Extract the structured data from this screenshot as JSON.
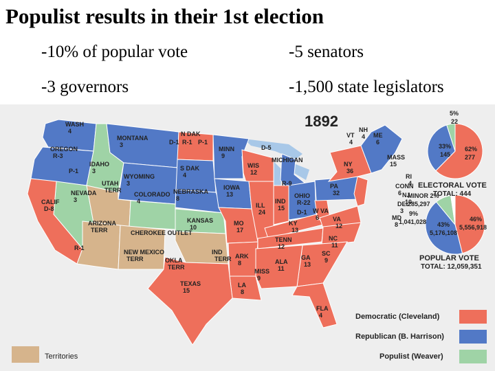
{
  "slide": {
    "title": "Populist results in their 1st election",
    "bullets": [
      "-10% of popular vote",
      "-5 senators",
      "-3 governors",
      "-1,500 state legislators"
    ]
  },
  "colors": {
    "democratic": "#ee6f5b",
    "republican": "#5279c6",
    "populist": "#9fd3a6",
    "territory": "#d6b48c",
    "water": "#a8c8e8",
    "land": "#eeeeee"
  },
  "map": {
    "year": "1892",
    "states": [
      {
        "name": "WASH",
        "votes": "4",
        "party": "republican"
      },
      {
        "name": "MONTANA",
        "votes": "3",
        "party": "republican"
      },
      {
        "name": "OREGON",
        "votes": "R-3",
        "party": "republican"
      },
      {
        "name": "P-1",
        "votes": "",
        "party": "populist"
      },
      {
        "name": "IDAHO",
        "votes": "3",
        "party": "populist"
      },
      {
        "name": "WYOMING",
        "votes": "3",
        "party": "republican"
      },
      {
        "name": "N DAK",
        "votes": "",
        "party": "democratic"
      },
      {
        "name": "D-1",
        "votes": "",
        "party": "democratic"
      },
      {
        "name": "R-1",
        "votes": "",
        "party": "republican"
      },
      {
        "name": "P-1",
        "votes": "",
        "party": "populist"
      },
      {
        "name": "S DAK",
        "votes": "4",
        "party": "republican"
      },
      {
        "name": "MINN",
        "votes": "9",
        "party": "republican"
      },
      {
        "name": "WIS",
        "votes": "12",
        "party": "democratic"
      },
      {
        "name": "MICHIGAN",
        "votes": "",
        "party": "republican"
      },
      {
        "name": "R-9",
        "votes": "",
        "party": "republican"
      },
      {
        "name": "D-5",
        "votes": "",
        "party": "democratic"
      },
      {
        "name": "NEVADA",
        "votes": "3",
        "party": "populist"
      },
      {
        "name": "CALIF",
        "votes": "D-8",
        "party": "democratic"
      },
      {
        "name": "R-1",
        "votes": "",
        "party": "republican"
      },
      {
        "name": "UTAH",
        "votes": "TERR",
        "party": "territory"
      },
      {
        "name": "COLORADO",
        "votes": "4",
        "party": "populist"
      },
      {
        "name": "NEBRASKA",
        "votes": "8",
        "party": "republican"
      },
      {
        "name": "IOWA",
        "votes": "13",
        "party": "republican"
      },
      {
        "name": "ILL",
        "votes": "24",
        "party": "democratic"
      },
      {
        "name": "IND",
        "votes": "15",
        "party": "democratic"
      },
      {
        "name": "OHIO",
        "votes": "R-22",
        "party": "republican"
      },
      {
        "name": "D-1",
        "votes": "",
        "party": "democratic"
      },
      {
        "name": "KANSAS",
        "votes": "10",
        "party": "populist"
      },
      {
        "name": "MO",
        "votes": "17",
        "party": "democratic"
      },
      {
        "name": "KY",
        "votes": "13",
        "party": "democratic"
      },
      {
        "name": "W VA",
        "votes": "6",
        "party": "democratic"
      },
      {
        "name": "VA",
        "votes": "12",
        "party": "democratic"
      },
      {
        "name": "PA",
        "votes": "32",
        "party": "republican"
      },
      {
        "name": "NY",
        "votes": "36",
        "party": "democratic"
      },
      {
        "name": "VT",
        "votes": "4",
        "party": "republican"
      },
      {
        "name": "NH",
        "votes": "4",
        "party": "republican"
      },
      {
        "name": "ME",
        "votes": "6",
        "party": "republican"
      },
      {
        "name": "MASS",
        "votes": "15",
        "party": "republican"
      },
      {
        "name": "RI",
        "votes": "4",
        "party": "republican"
      },
      {
        "name": "CONN",
        "votes": "6",
        "party": "democratic"
      },
      {
        "name": "NJ",
        "votes": "10",
        "party": "democratic"
      },
      {
        "name": "DEL",
        "votes": "3",
        "party": "democratic"
      },
      {
        "name": "MD",
        "votes": "8",
        "party": "democratic"
      },
      {
        "name": "ARIZONA",
        "votes": "TERR",
        "party": "territory"
      },
      {
        "name": "NEW MEXICO",
        "votes": "TERR",
        "party": "territory"
      },
      {
        "name": "OKLA",
        "votes": "TERR",
        "party": "territory"
      },
      {
        "name": "IND",
        "votes": "TERR",
        "party": "territory"
      },
      {
        "name": "ARK",
        "votes": "8",
        "party": "democratic"
      },
      {
        "name": "TENN",
        "votes": "12",
        "party": "democratic"
      },
      {
        "name": "NC",
        "votes": "11",
        "party": "democratic"
      },
      {
        "name": "SC",
        "votes": "9",
        "party": "democratic"
      },
      {
        "name": "GA",
        "votes": "13",
        "party": "democratic"
      },
      {
        "name": "ALA",
        "votes": "11",
        "party": "democratic"
      },
      {
        "name": "MISS",
        "votes": "9",
        "party": "democratic"
      },
      {
        "name": "LA",
        "votes": "8",
        "party": "democratic"
      },
      {
        "name": "TEXAS",
        "votes": "15",
        "party": "democratic"
      },
      {
        "name": "FLA",
        "votes": "4",
        "party": "democratic"
      }
    ],
    "cherokee_label": "CHEROKEE OUTLET",
    "electoral": {
      "title": "ELECTORAL VOTE",
      "total": "TOTAL: 444",
      "labels": [
        {
          "pct": "62%",
          "value": "277"
        },
        {
          "pct": "33%",
          "value": "145"
        },
        {
          "pct": "5%",
          "value": "22"
        }
      ],
      "slices": [
        {
          "party": "democratic",
          "value": 277
        },
        {
          "party": "republican",
          "value": 145
        },
        {
          "party": "populist",
          "value": 22
        }
      ]
    },
    "popular": {
      "title": "POPULAR VOTE",
      "total": "TOTAL: 12,059,351",
      "labels": [
        {
          "pct": "46%",
          "value": "5,556,918"
        },
        {
          "pct": "43%",
          "value": "5,176,108"
        },
        {
          "pct": "9%",
          "value": "1,041,028"
        },
        {
          "pct": "MINOR 2%",
          "value": "285,297"
        }
      ],
      "slices": [
        {
          "party": "democratic",
          "value": 5556918
        },
        {
          "party": "republican",
          "value": 5176108
        },
        {
          "party": "populist",
          "value": 1041028
        },
        {
          "party": "minor",
          "value": 285297
        }
      ]
    },
    "legend": [
      {
        "label": "Democratic (Cleveland)",
        "party": "democratic"
      },
      {
        "label": "Republican (B. Harrison)",
        "party": "republican"
      },
      {
        "label": "Populist (Weaver)",
        "party": "populist"
      },
      {
        "label": "Territories",
        "party": "territory"
      }
    ]
  }
}
